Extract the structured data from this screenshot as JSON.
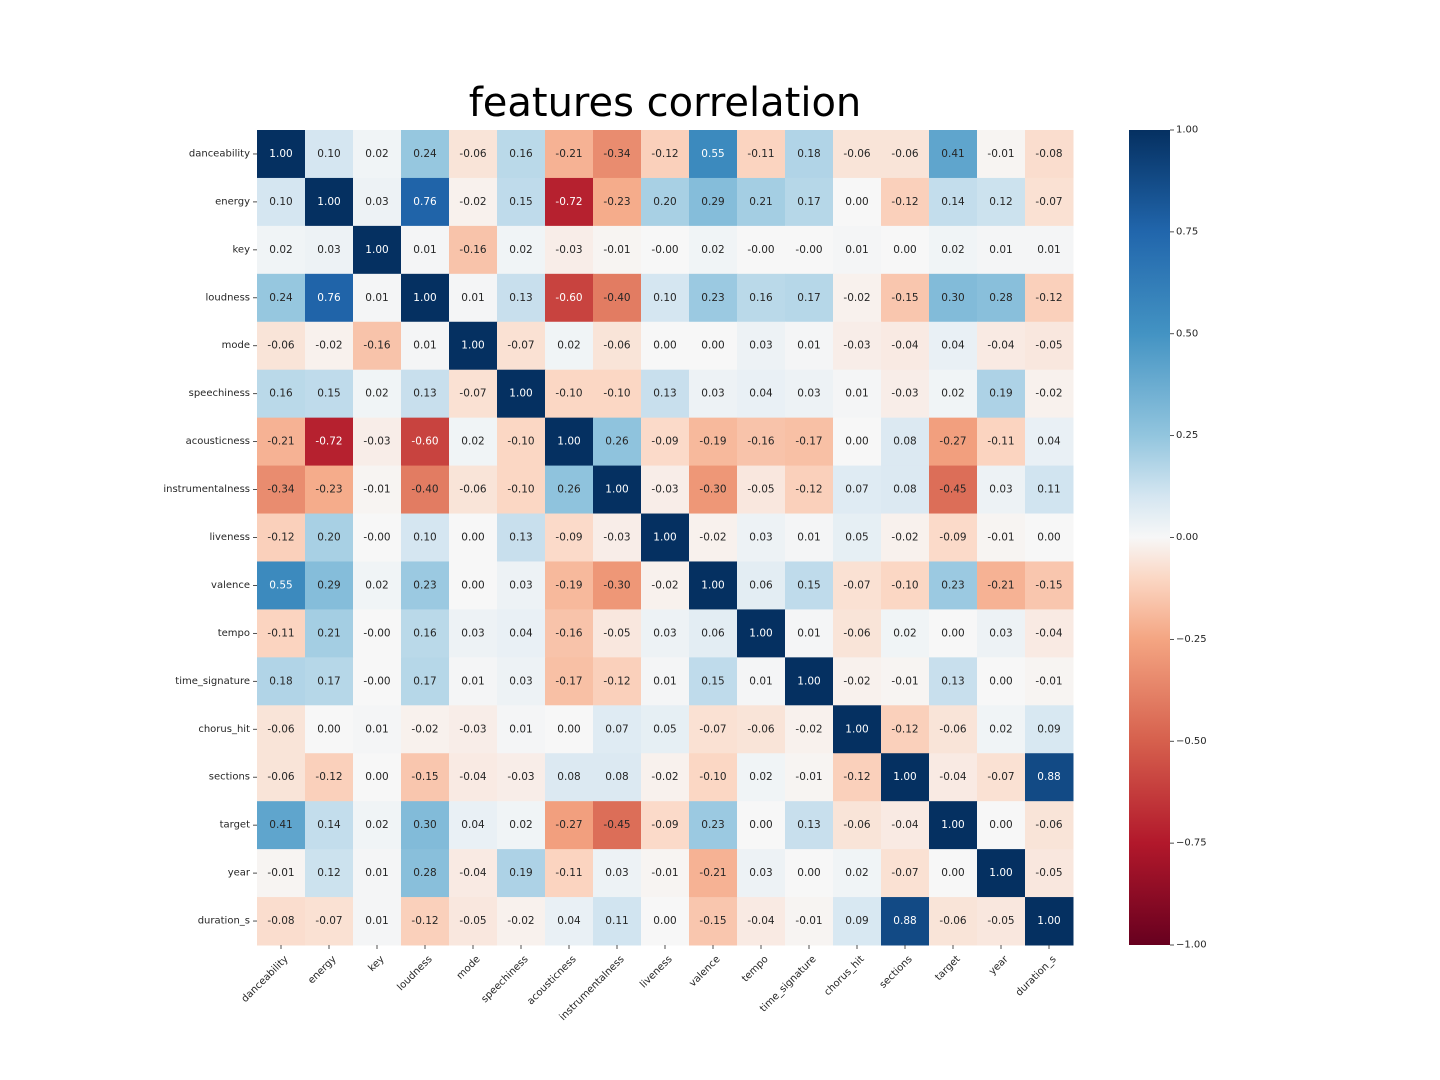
{
  "chart_data": {
    "type": "heatmap",
    "title": "features correlation",
    "labels": [
      "danceability",
      "energy",
      "key",
      "loudness",
      "mode",
      "speechiness",
      "acousticness",
      "instrumentalness",
      "liveness",
      "valence",
      "tempo",
      "time_signature",
      "chorus_hit",
      "sections",
      "target",
      "year",
      "duration_s"
    ],
    "matrix": [
      [
        1.0,
        0.1,
        0.02,
        0.24,
        -0.06,
        0.16,
        -0.21,
        -0.34,
        -0.12,
        0.55,
        -0.11,
        0.18,
        -0.06,
        -0.06,
        0.41,
        -0.01,
        -0.08
      ],
      [
        0.1,
        1.0,
        0.03,
        0.76,
        -0.02,
        0.15,
        -0.72,
        -0.23,
        0.2,
        0.29,
        0.21,
        0.17,
        0.0,
        -0.12,
        0.14,
        0.12,
        -0.07
      ],
      [
        0.02,
        0.03,
        1.0,
        0.01,
        -0.16,
        0.02,
        -0.03,
        -0.01,
        -0.0,
        0.02,
        -0.0,
        -0.0,
        0.01,
        0.0,
        0.02,
        0.01,
        0.01
      ],
      [
        0.24,
        0.76,
        0.01,
        1.0,
        0.01,
        0.13,
        -0.6,
        -0.4,
        0.1,
        0.23,
        0.16,
        0.17,
        -0.02,
        -0.15,
        0.3,
        0.28,
        -0.12
      ],
      [
        -0.06,
        -0.02,
        -0.16,
        0.01,
        1.0,
        -0.07,
        0.02,
        -0.06,
        0.0,
        0.0,
        0.03,
        0.01,
        -0.03,
        -0.04,
        0.04,
        -0.04,
        -0.05
      ],
      [
        0.16,
        0.15,
        0.02,
        0.13,
        -0.07,
        1.0,
        -0.1,
        -0.1,
        0.13,
        0.03,
        0.04,
        0.03,
        0.01,
        -0.03,
        0.02,
        0.19,
        -0.02
      ],
      [
        -0.21,
        -0.72,
        -0.03,
        -0.6,
        0.02,
        -0.1,
        1.0,
        0.26,
        -0.09,
        -0.19,
        -0.16,
        -0.17,
        0.0,
        0.08,
        -0.27,
        -0.11,
        0.04
      ],
      [
        -0.34,
        -0.23,
        -0.01,
        -0.4,
        -0.06,
        -0.1,
        0.26,
        1.0,
        -0.03,
        -0.3,
        -0.05,
        -0.12,
        0.07,
        0.08,
        -0.45,
        0.03,
        0.11
      ],
      [
        -0.12,
        0.2,
        -0.0,
        0.1,
        0.0,
        0.13,
        -0.09,
        -0.03,
        1.0,
        -0.02,
        0.03,
        0.01,
        0.05,
        -0.02,
        -0.09,
        -0.01,
        0.0
      ],
      [
        0.55,
        0.29,
        0.02,
        0.23,
        0.0,
        0.03,
        -0.19,
        -0.3,
        -0.02,
        1.0,
        0.06,
        0.15,
        -0.07,
        -0.1,
        0.23,
        -0.21,
        -0.15
      ],
      [
        -0.11,
        0.21,
        -0.0,
        0.16,
        0.03,
        0.04,
        -0.16,
        -0.05,
        0.03,
        0.06,
        1.0,
        0.01,
        -0.06,
        0.02,
        0.0,
        0.03,
        -0.04
      ],
      [
        0.18,
        0.17,
        -0.0,
        0.17,
        0.01,
        0.03,
        -0.17,
        -0.12,
        0.01,
        0.15,
        0.01,
        1.0,
        -0.02,
        -0.01,
        0.13,
        0.0,
        -0.01
      ],
      [
        -0.06,
        0.0,
        0.01,
        -0.02,
        -0.03,
        0.01,
        0.0,
        0.07,
        0.05,
        -0.07,
        -0.06,
        -0.02,
        1.0,
        -0.12,
        -0.06,
        0.02,
        0.09
      ],
      [
        -0.06,
        -0.12,
        0.0,
        -0.15,
        -0.04,
        -0.03,
        0.08,
        0.08,
        -0.02,
        -0.1,
        0.02,
        -0.01,
        -0.12,
        1.0,
        -0.04,
        -0.07,
        0.88
      ],
      [
        0.41,
        0.14,
        0.02,
        0.3,
        0.04,
        0.02,
        -0.27,
        -0.45,
        -0.09,
        0.23,
        0.0,
        0.13,
        -0.06,
        -0.04,
        1.0,
        0.0,
        -0.06
      ],
      [
        -0.01,
        0.12,
        0.01,
        0.28,
        -0.04,
        0.19,
        -0.11,
        0.03,
        -0.01,
        -0.21,
        0.03,
        0.0,
        0.02,
        -0.07,
        0.0,
        1.0,
        -0.05
      ],
      [
        -0.08,
        -0.07,
        0.01,
        -0.12,
        -0.05,
        -0.02,
        0.04,
        0.11,
        0.0,
        -0.15,
        -0.04,
        -0.01,
        0.09,
        0.88,
        -0.06,
        -0.05,
        1.0
      ]
    ],
    "value_range": [
      -1.0,
      1.0
    ],
    "colormap": "RdBu",
    "colorbar_ticks": [
      "1.00",
      "0.75",
      "0.50",
      "0.25",
      "0.00",
      "−0.25",
      "−0.50",
      "−0.75",
      "−1.00"
    ],
    "colorbar_values": [
      1.0,
      0.75,
      0.5,
      0.25,
      0.0,
      -0.25,
      -0.5,
      -0.75,
      -1.0
    ],
    "annotation_format": "0.00",
    "grid": false,
    "legend": "colorbar-right"
  }
}
